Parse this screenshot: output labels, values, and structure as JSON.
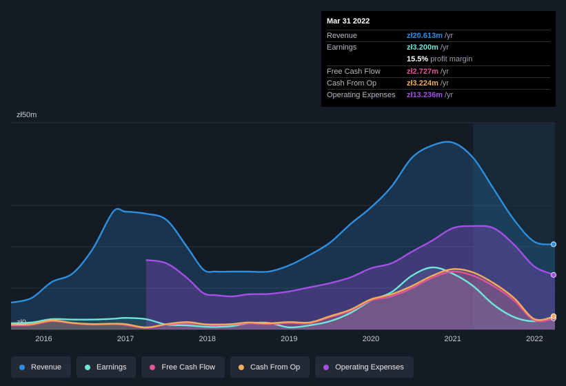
{
  "tooltip": {
    "date": "Mar 31 2022",
    "rows": [
      {
        "label": "Revenue",
        "value": "zł20.613m",
        "unit": "/yr",
        "color": "#2e8fe0"
      },
      {
        "label": "Earnings",
        "value": "zł3.200m",
        "unit": "/yr",
        "color": "#6ee6d8"
      },
      {
        "label": "",
        "value": "15.5%",
        "unit": "profit margin",
        "color": "#ffffff"
      },
      {
        "label": "Free Cash Flow",
        "value": "zł2.727m",
        "unit": "/yr",
        "color": "#e05594"
      },
      {
        "label": "Cash From Op",
        "value": "zł3.224m",
        "unit": "/yr",
        "color": "#f0ad5a"
      },
      {
        "label": "Operating Expenses",
        "value": "zł13.236m",
        "unit": "/yr",
        "color": "#a44fe6"
      }
    ]
  },
  "chart_data": {
    "type": "area",
    "title": "",
    "ylabel": "",
    "xlabel": "",
    "ylim": [
      0,
      50
    ],
    "y_tick_labels": [
      "zł50m",
      "zł0"
    ],
    "x_tick_labels": [
      "2016",
      "2017",
      "2018",
      "2019",
      "2020",
      "2021",
      "2022"
    ],
    "x_tick_values": [
      2016,
      2017,
      2018,
      2019,
      2020,
      2021,
      2022
    ],
    "xlim": [
      2015.6,
      2022.25
    ],
    "forecast_shade_from": 2021.25,
    "series": [
      {
        "name": "Revenue",
        "color": "#2e8fe0",
        "x": [
          2015.6,
          2015.85,
          2016.1,
          2016.35,
          2016.6,
          2016.85,
          2017.0,
          2017.25,
          2017.5,
          2017.75,
          2017.95,
          2018.1,
          2018.3,
          2018.5,
          2018.75,
          2019.0,
          2019.25,
          2019.5,
          2019.75,
          2020.0,
          2020.25,
          2020.5,
          2020.75,
          2021.0,
          2021.25,
          2021.5,
          2021.75,
          2022.0,
          2022.25
        ],
        "values": [
          6.5,
          7.6,
          11.5,
          13.5,
          19.5,
          28.5,
          28.5,
          28.0,
          26.5,
          20.0,
          14.5,
          14.0,
          14.0,
          14.0,
          14.0,
          15.5,
          18.0,
          21.0,
          25.5,
          29.5,
          34.5,
          41.5,
          44.5,
          45.2,
          41.5,
          34.0,
          26.5,
          21.2,
          20.6
        ]
      },
      {
        "name": "Earnings",
        "color": "#6ee6d8",
        "x": [
          2015.6,
          2015.85,
          2016.1,
          2016.35,
          2016.6,
          2016.85,
          2017.0,
          2017.25,
          2017.5,
          2017.75,
          2017.95,
          2018.1,
          2018.3,
          2018.5,
          2018.75,
          2019.0,
          2019.25,
          2019.5,
          2019.75,
          2020.0,
          2020.25,
          2020.5,
          2020.75,
          2021.0,
          2021.25,
          2021.5,
          2021.75,
          2022.0,
          2022.25
        ],
        "values": [
          1.5,
          1.7,
          2.5,
          2.4,
          2.4,
          2.6,
          2.8,
          2.5,
          1.2,
          1.0,
          0.7,
          0.6,
          0.8,
          1.5,
          1.6,
          0.5,
          1.0,
          2.0,
          4.0,
          7.0,
          9.0,
          13.0,
          15.0,
          13.5,
          10.5,
          6.0,
          3.0,
          2.0,
          3.2
        ]
      },
      {
        "name": "Free Cash Flow",
        "color": "#e05594",
        "x": [
          2015.6,
          2015.85,
          2016.1,
          2016.35,
          2016.6,
          2016.85,
          2017.0,
          2017.25,
          2017.5,
          2017.75,
          2017.95,
          2018.1,
          2018.3,
          2018.5,
          2018.75,
          2019.0,
          2019.25,
          2019.5,
          2019.75,
          2020.0,
          2020.25,
          2020.5,
          2020.75,
          2021.0,
          2021.25,
          2021.5,
          2021.75,
          2022.0,
          2022.25
        ],
        "values": [
          1.0,
          1.1,
          2.0,
          1.5,
          1.2,
          1.3,
          1.1,
          0.4,
          1.2,
          1.5,
          1.2,
          1.0,
          1.2,
          1.5,
          1.3,
          1.6,
          1.5,
          3.0,
          4.5,
          7.0,
          8.0,
          10.0,
          12.5,
          14.0,
          13.0,
          10.5,
          7.0,
          2.2,
          2.7
        ]
      },
      {
        "name": "Cash From Op",
        "color": "#f0ad5a",
        "x": [
          2015.6,
          2015.85,
          2016.1,
          2016.35,
          2016.6,
          2016.85,
          2017.0,
          2017.25,
          2017.5,
          2017.75,
          2017.95,
          2018.1,
          2018.3,
          2018.5,
          2018.75,
          2019.0,
          2019.25,
          2019.5,
          2019.75,
          2020.0,
          2020.25,
          2020.5,
          2020.75,
          2021.0,
          2021.25,
          2021.5,
          2021.75,
          2022.0,
          2022.25
        ],
        "values": [
          1.2,
          1.3,
          2.2,
          1.6,
          1.3,
          1.4,
          1.3,
          0.5,
          1.3,
          1.8,
          1.3,
          1.2,
          1.3,
          1.7,
          1.5,
          1.8,
          1.7,
          3.2,
          4.8,
          7.3,
          8.5,
          10.5,
          13.0,
          14.6,
          13.8,
          11.2,
          7.6,
          2.5,
          3.2
        ]
      },
      {
        "name": "Operating Expenses",
        "color": "#a44fe6",
        "x": [
          2017.25,
          2017.5,
          2017.75,
          2017.95,
          2018.1,
          2018.3,
          2018.5,
          2018.75,
          2019.0,
          2019.25,
          2019.5,
          2019.75,
          2020.0,
          2020.25,
          2020.5,
          2020.75,
          2021.0,
          2021.25,
          2021.5,
          2021.75,
          2022.0,
          2022.25
        ],
        "values": [
          16.8,
          16.0,
          12.5,
          8.8,
          8.3,
          8.0,
          8.5,
          8.6,
          9.2,
          10.2,
          11.2,
          12.6,
          14.8,
          16.0,
          18.8,
          21.5,
          24.5,
          25.0,
          24.5,
          20.5,
          15.2,
          13.2
        ]
      }
    ]
  },
  "legend": [
    {
      "label": "Revenue",
      "color": "#2e8fe0"
    },
    {
      "label": "Earnings",
      "color": "#6ee6d8"
    },
    {
      "label": "Free Cash Flow",
      "color": "#e05594"
    },
    {
      "label": "Cash From Op",
      "color": "#f0ad5a"
    },
    {
      "label": "Operating Expenses",
      "color": "#a44fe6"
    }
  ]
}
